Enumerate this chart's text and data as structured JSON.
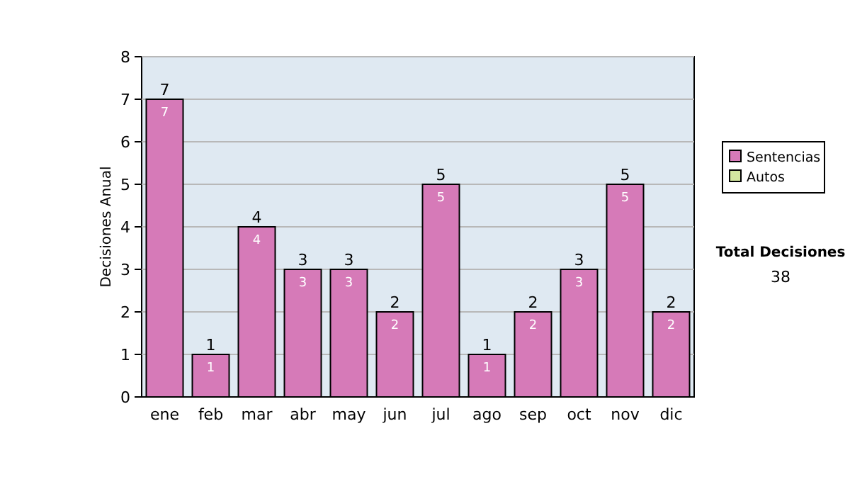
{
  "chart_data": {
    "type": "bar",
    "stacked": true,
    "ylabel": "Decisiones Anual",
    "categories": [
      "ene",
      "feb",
      "mar",
      "abr",
      "may",
      "jun",
      "jul",
      "ago",
      "sep",
      "oct",
      "nov",
      "dic"
    ],
    "series": [
      {
        "name": "Sentencias",
        "color": "#d67ab8",
        "values": [
          7,
          1,
          4,
          3,
          3,
          2,
          5,
          1,
          2,
          3,
          5,
          2
        ],
        "value_labels": [
          "7",
          "1",
          "4",
          "3",
          "3",
          "2",
          "5",
          "1",
          "2",
          "3",
          "5",
          "2"
        ]
      },
      {
        "name": "Autos",
        "color": "#d4e8a0",
        "values": [
          0,
          0,
          0,
          0,
          0,
          0,
          0,
          0,
          0,
          0,
          0,
          0
        ],
        "value_labels": [
          null,
          null,
          null,
          null,
          null,
          null,
          null,
          null,
          null,
          null,
          null,
          null
        ]
      }
    ],
    "totals": [
      "7",
      "1",
      "4",
      "3",
      "3",
      "2",
      "5",
      "1",
      "2",
      "3",
      "5",
      "2"
    ],
    "ylim": [
      0,
      8
    ],
    "yticks": [
      0,
      1,
      2,
      3,
      4,
      5,
      6,
      7,
      8
    ],
    "grid": "y",
    "legend": "right",
    "annotations": [
      "Total Decisiones",
      "38"
    ]
  }
}
